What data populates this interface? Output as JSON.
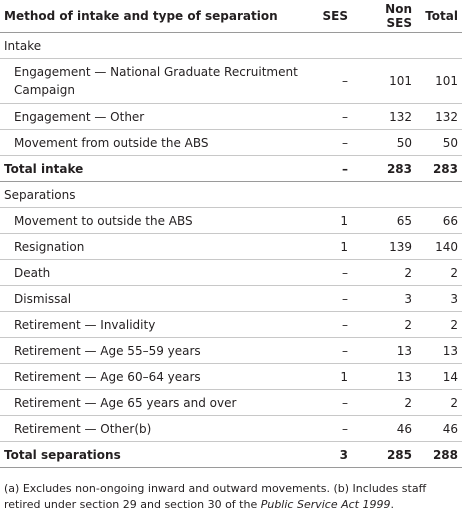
{
  "table": {
    "headers": [
      "Method of intake and type of separation",
      "SES",
      "Non SES",
      "Total"
    ],
    "intake_section": "Intake",
    "intake_rows": [
      {
        "label": "Engagement — National Graduate Recruitment Campaign",
        "ses": "–",
        "non_ses": "101",
        "total": "101"
      },
      {
        "label": "Engagement — Other",
        "ses": "–",
        "non_ses": "132",
        "total": "132"
      },
      {
        "label": "Movement from outside the ABS",
        "ses": "–",
        "non_ses": "50",
        "total": "50"
      }
    ],
    "total_intake": {
      "label": "Total intake",
      "ses": "–",
      "non_ses": "283",
      "total": "283"
    },
    "separations_section": "Separations",
    "separation_rows": [
      {
        "label": "Movement to outside the ABS",
        "ses": "1",
        "non_ses": "65",
        "total": "66"
      },
      {
        "label": "Resignation",
        "ses": "1",
        "non_ses": "139",
        "total": "140"
      },
      {
        "label": "Death",
        "ses": "–",
        "non_ses": "2",
        "total": "2"
      },
      {
        "label": "Dismissal",
        "ses": "–",
        "non_ses": "3",
        "total": "3"
      },
      {
        "label": "Retirement — Invalidity",
        "ses": "–",
        "non_ses": "2",
        "total": "2"
      },
      {
        "label": "Retirement — Age 55–59 years",
        "ses": "–",
        "non_ses": "13",
        "total": "13"
      },
      {
        "label": "Retirement — Age 60–64 years",
        "ses": "1",
        "non_ses": "13",
        "total": "14"
      },
      {
        "label": "Retirement — Age 65 years and over",
        "ses": "–",
        "non_ses": "2",
        "total": "2"
      },
      {
        "label": "Retirement — Other(b)",
        "ses": "–",
        "non_ses": "46",
        "total": "46"
      }
    ],
    "total_separations": {
      "label": "Total separations",
      "ses": "3",
      "non_ses": "285",
      "total": "288"
    }
  },
  "footnote": {
    "text_before": "(a) Excludes non-ongoing inward and outward movements. (b) Includes staff retired under section 29 and section 30 of the ",
    "act_name": "Public Service Act 1999",
    "text_after": "."
  }
}
